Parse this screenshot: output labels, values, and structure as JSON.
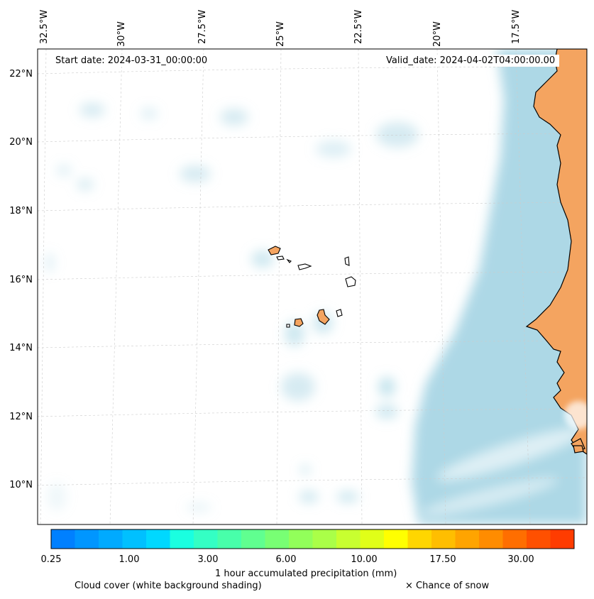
{
  "map": {
    "start_date_label": "Start date: 2024-03-31_00:00:00",
    "valid_date_label": "Valid_date: 2024-04-02T04:00:00.00",
    "lon_labels": [
      "32.5°W",
      "30°W",
      "27.5°W",
      "25°W",
      "22.5°W",
      "20°W",
      "17.5°W"
    ],
    "lat_labels": [
      "22°N",
      "20°N",
      "18°N",
      "16°N",
      "14°N",
      "12°N",
      "10°N"
    ],
    "colors": {
      "ocean": "#ffffff",
      "cloud_shading": "#add8e6",
      "land": "#f4a460",
      "coastline": "#000000",
      "gridline": "#cccccc"
    }
  },
  "colorbar": {
    "title": "1 hour accumulated precipitation (mm)",
    "tick_labels": [
      "0.25",
      "1.00",
      "3.00",
      "6.00",
      "10.00",
      "17.50",
      "30.00"
    ],
    "colors": [
      "#0080ff",
      "#0096ff",
      "#00aaff",
      "#00c0ff",
      "#00d8ff",
      "#1affe0",
      "#34ffc4",
      "#48ffaa",
      "#60ff90",
      "#78ff74",
      "#92ff5a",
      "#aaff48",
      "#c8ff30",
      "#e0ff18",
      "#ffff00",
      "#ffd600",
      "#ffbe00",
      "#ffa400",
      "#ff8c00",
      "#ff6e00",
      "#ff5000",
      "#ff3c00"
    ]
  },
  "captions": {
    "cloud_cover": "Cloud cover (white background shading)",
    "snow": "× Chance of snow"
  }
}
